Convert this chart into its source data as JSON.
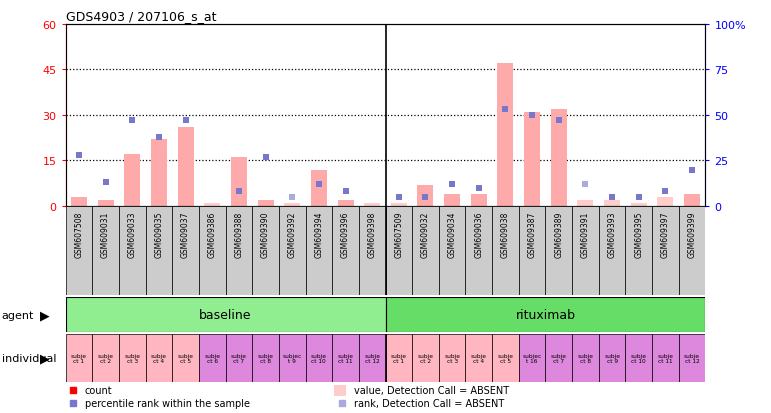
{
  "title": "GDS4903 / 207106_s_at",
  "samples": [
    "GSM607508",
    "GSM609031",
    "GSM609033",
    "GSM609035",
    "GSM609037",
    "GSM609386",
    "GSM609388",
    "GSM609390",
    "GSM609392",
    "GSM609394",
    "GSM609396",
    "GSM609398",
    "GSM607509",
    "GSM609032",
    "GSM609034",
    "GSM609036",
    "GSM609038",
    "GSM609387",
    "GSM609389",
    "GSM609391",
    "GSM609393",
    "GSM609395",
    "GSM609397",
    "GSM609399"
  ],
  "bar_values": [
    3,
    2,
    17,
    22,
    26,
    1,
    16,
    2,
    1,
    12,
    2,
    1,
    1,
    7,
    4,
    4,
    47,
    31,
    32,
    2,
    2,
    1,
    3,
    4
  ],
  "bar_absent": [
    false,
    false,
    false,
    false,
    false,
    true,
    false,
    false,
    true,
    false,
    false,
    true,
    true,
    false,
    false,
    false,
    false,
    false,
    false,
    true,
    true,
    true,
    true,
    false
  ],
  "rank_dots": [
    28,
    13,
    47,
    38,
    47,
    0,
    8,
    27,
    5,
    12,
    8,
    0,
    5,
    5,
    12,
    10,
    53,
    50,
    47,
    12,
    5,
    5,
    8,
    20
  ],
  "rank_absent": [
    false,
    false,
    false,
    false,
    false,
    false,
    false,
    false,
    true,
    false,
    false,
    false,
    false,
    false,
    false,
    false,
    false,
    false,
    false,
    true,
    false,
    false,
    false,
    false
  ],
  "indiv_texts": [
    "subje\nct 1",
    "subje\nct 2",
    "subje\nct 3",
    "subje\nct 4",
    "subje\nct 5",
    "subje\nct 6",
    "subje\nct 7",
    "subje\nct 8",
    "subjec\nt 9",
    "subje\nct 10",
    "subje\nct 11",
    "subje\nct 12",
    "subje\nct 1",
    "subje\nct 2",
    "subje\nct 3",
    "subje\nct 4",
    "subje\nct 5",
    "subjec\nt 16",
    "subje\nct 7",
    "subje\nct 8",
    "subje\nct 9",
    "subje\nct 10",
    "subje\nct 11",
    "subje\nct 12"
  ],
  "indiv_colors": [
    "#ffb6c1",
    "#ffb6c1",
    "#ffb6c1",
    "#ffb6c1",
    "#ffb6c1",
    "#dd88dd",
    "#dd88dd",
    "#dd88dd",
    "#dd88dd",
    "#dd88dd",
    "#dd88dd",
    "#dd88dd",
    "#ffb6c1",
    "#ffb6c1",
    "#ffb6c1",
    "#ffb6c1",
    "#ffb6c1",
    "#dd88dd",
    "#dd88dd",
    "#dd88dd",
    "#dd88dd",
    "#dd88dd",
    "#dd88dd",
    "#dd88dd"
  ],
  "ylim_left": [
    0,
    60
  ],
  "ylim_right": [
    0,
    100
  ],
  "yticks_left": [
    0,
    15,
    30,
    45,
    60
  ],
  "yticks_right": [
    0,
    25,
    50,
    75,
    100
  ],
  "bar_color_present": "#ffaaaa",
  "bar_color_absent": "#ffcccc",
  "dot_color_present": "#7777cc",
  "dot_color_absent": "#aaaadd",
  "background_color": "#ffffff",
  "xticklabel_bg": "#d0d0d0",
  "agent_baseline_color": "#90ee90",
  "agent_rituximab_color": "#66dd66"
}
